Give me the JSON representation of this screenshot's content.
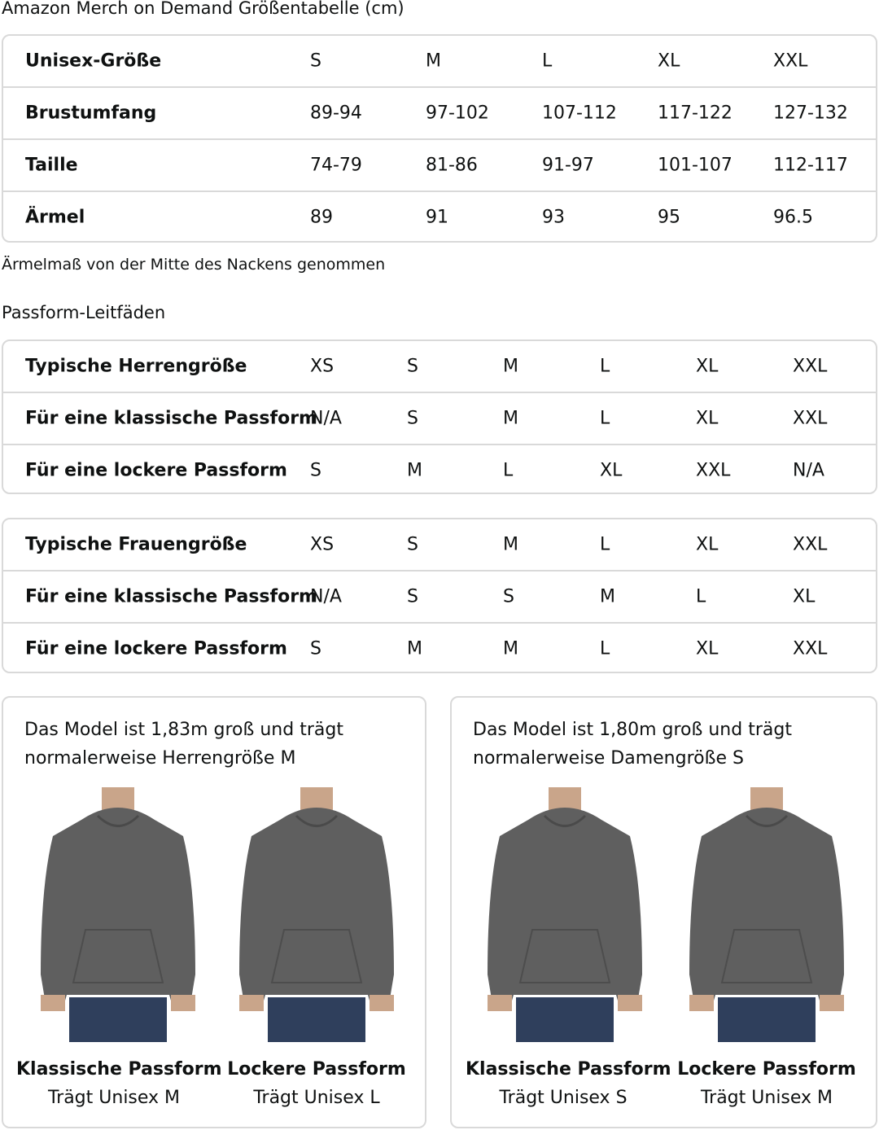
{
  "title": "Amazon Merch on Demand Größentabelle (cm)",
  "size_table": {
    "rows": [
      {
        "label": "Unisex-Größe",
        "values": [
          "S",
          "M",
          "L",
          "XL",
          "XXL"
        ]
      },
      {
        "label": "Brustumfang",
        "values": [
          "89-94",
          "97-102",
          "107-112",
          "117-122",
          "127-132"
        ]
      },
      {
        "label": "Taille",
        "values": [
          "74-79",
          "81-86",
          "91-97",
          "101-107",
          "112-117"
        ]
      },
      {
        "label": "Ärmel",
        "values": [
          "89",
          "91",
          "93",
          "95",
          "96.5"
        ]
      }
    ]
  },
  "note": "Ärmelmaß von der Mitte des Nackens genommen",
  "fit_title": "Passform-Leitfäden",
  "men_table": {
    "rows": [
      {
        "label": "Typische Herrengröße",
        "values": [
          "XS",
          "S",
          "M",
          "L",
          "XL",
          "XXL"
        ]
      },
      {
        "label": "Für eine klassische Passform",
        "values": [
          "N/A",
          "S",
          "M",
          "L",
          "XL",
          "XXL"
        ]
      },
      {
        "label": "Für eine lockere Passform",
        "values": [
          "S",
          "M",
          "L",
          "XL",
          "XXL",
          "N/A"
        ]
      }
    ]
  },
  "women_table": {
    "rows": [
      {
        "label": "Typische Frauengröße",
        "values": [
          "XS",
          "S",
          "M",
          "L",
          "XL",
          "XXL"
        ]
      },
      {
        "label": "Für eine klassische Passform",
        "values": [
          "N/A",
          "S",
          "S",
          "M",
          "L",
          "XL"
        ]
      },
      {
        "label": "Für eine lockere Passform",
        "values": [
          "S",
          "M",
          "M",
          "L",
          "XL",
          "XXL"
        ]
      }
    ]
  },
  "cards": [
    {
      "desc": "Das Model ist 1,83m groß und trägt normalerweise Herrengröße M",
      "figures": [
        {
          "title": "Klassische Passform",
          "sub": "Trägt Unisex M"
        },
        {
          "title": "Lockere Passform",
          "sub": "Trägt Unisex L"
        }
      ]
    },
    {
      "desc": "Das Model ist 1,80m groß und trägt normalerweise Damengröße S",
      "figures": [
        {
          "title": "Klassische Passform",
          "sub": "Trägt Unisex S"
        },
        {
          "title": "Lockere Passform",
          "sub": "Trägt Unisex M"
        }
      ]
    }
  ],
  "colors": {
    "border": "#d9d9d9",
    "hoodie": "#5f5f5f",
    "jeans": "#2f3f5c"
  }
}
